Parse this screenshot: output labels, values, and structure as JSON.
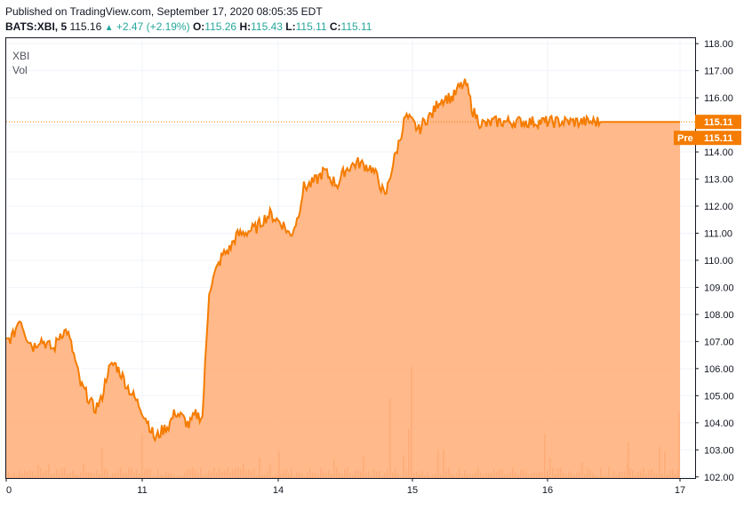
{
  "header": {
    "published": "Published on TradingView.com, September 17, 2020 08:05:35 EDT",
    "symbol": "BATS:XBI, 5",
    "last": "115.16",
    "change": "+2.47 (+2.19%)",
    "o_label": "O:",
    "o_value": "115.26",
    "h_label": "H:",
    "h_value": "115.43",
    "l_label": "L:",
    "l_value": "115.11",
    "c_label": "C:",
    "c_value": "115.11"
  },
  "legend": {
    "symbol": "XBI",
    "volume": "Vol"
  },
  "colors": {
    "line": "#f57c00",
    "fill": "#ffad76",
    "price_tag": "#f57c00",
    "volume": "#f4a884",
    "grid": "#f0f3fa"
  },
  "chart_data": {
    "type": "area",
    "x_ticks": [
      "0",
      "11",
      "14",
      "15",
      "16",
      "17"
    ],
    "y_ticks": [
      "118.00",
      "117.00",
      "116.00",
      "115.00",
      "114.00",
      "113.00",
      "112.00",
      "111.00",
      "110.00",
      "109.00",
      "108.00",
      "107.00",
      "106.00",
      "105.00",
      "104.00",
      "103.00",
      "102.00"
    ],
    "ylim": [
      101.96,
      118.2
    ],
    "last_price_label": "115.11",
    "pre_label": "Pre",
    "pre_price_label": "115.11",
    "series": [
      {
        "x": [
          0,
          0.05,
          0.1,
          0.15,
          0.2,
          0.25,
          0.3,
          0.35,
          0.4,
          0.45,
          0.5,
          0.55,
          0.6,
          0.65,
          0.7,
          0.75,
          0.8,
          0.85,
          0.9,
          0.95,
          1,
          1.05,
          1.1,
          1.15,
          1.2,
          1.25,
          1.3,
          1.35,
          1.4,
          1.45,
          1.5,
          1.55,
          1.6,
          1.65,
          1.7,
          1.75,
          1.8,
          1.85,
          1.9,
          1.95,
          2,
          2.05,
          2.1,
          2.15,
          2.2,
          2.25,
          2.3,
          2.35,
          2.4,
          2.45,
          2.5,
          2.55,
          2.6,
          2.65,
          2.7,
          2.75,
          2.8,
          2.85,
          2.9,
          2.95,
          3,
          3.05,
          3.1,
          3.15,
          3.2,
          3.25,
          3.3,
          3.35,
          3.4,
          3.45,
          3.5,
          3.55,
          3.6,
          3.65,
          3.7,
          3.75,
          3.8,
          3.85,
          3.9,
          3.95,
          4,
          4.05,
          4.1,
          4.15,
          4.2,
          4.25,
          4.3,
          4.35,
          4.4,
          4.45,
          4.5,
          4.55,
          4.6,
          4.65,
          4.7,
          4.75,
          4.8,
          4.85,
          4.9,
          4.95,
          5
        ],
        "y": [
          107.0,
          107.2,
          107.9,
          107.2,
          106.8,
          107.1,
          106.9,
          106.7,
          107.3,
          107.4,
          106.5,
          105.4,
          105.0,
          104.5,
          104.8,
          105.9,
          106.2,
          105.8,
          105.3,
          104.9,
          104.5,
          104.0,
          103.4,
          103.7,
          103.9,
          104.4,
          104.2,
          103.9,
          104.3,
          104.2,
          108.9,
          109.6,
          110.2,
          110.4,
          110.9,
          111.0,
          111.1,
          111.2,
          111.5,
          111.7,
          111.5,
          111.3,
          110.9,
          111.5,
          112.7,
          112.8,
          113.0,
          113.3,
          113.0,
          112.8,
          113.3,
          113.5,
          113.6,
          113.5,
          113.4,
          113.0,
          112.3,
          113.4,
          114.3,
          115.3,
          115.1,
          114.8,
          115.2,
          115.4,
          115.9,
          116.0,
          116.0,
          116.4,
          116.5,
          115.5,
          115.1,
          115.0,
          115.11,
          115.11,
          115.11,
          115.11,
          115.11,
          115.11,
          115.11,
          115.11,
          115.11,
          115.11,
          115.11,
          115.11,
          115.11,
          115.11,
          115.11,
          115.11,
          115.11,
          115.11,
          115.11,
          115.11,
          115.11,
          115.11,
          115.11,
          115.11,
          115.11,
          115.11,
          115.11,
          115.11,
          115.11
        ]
      }
    ]
  }
}
